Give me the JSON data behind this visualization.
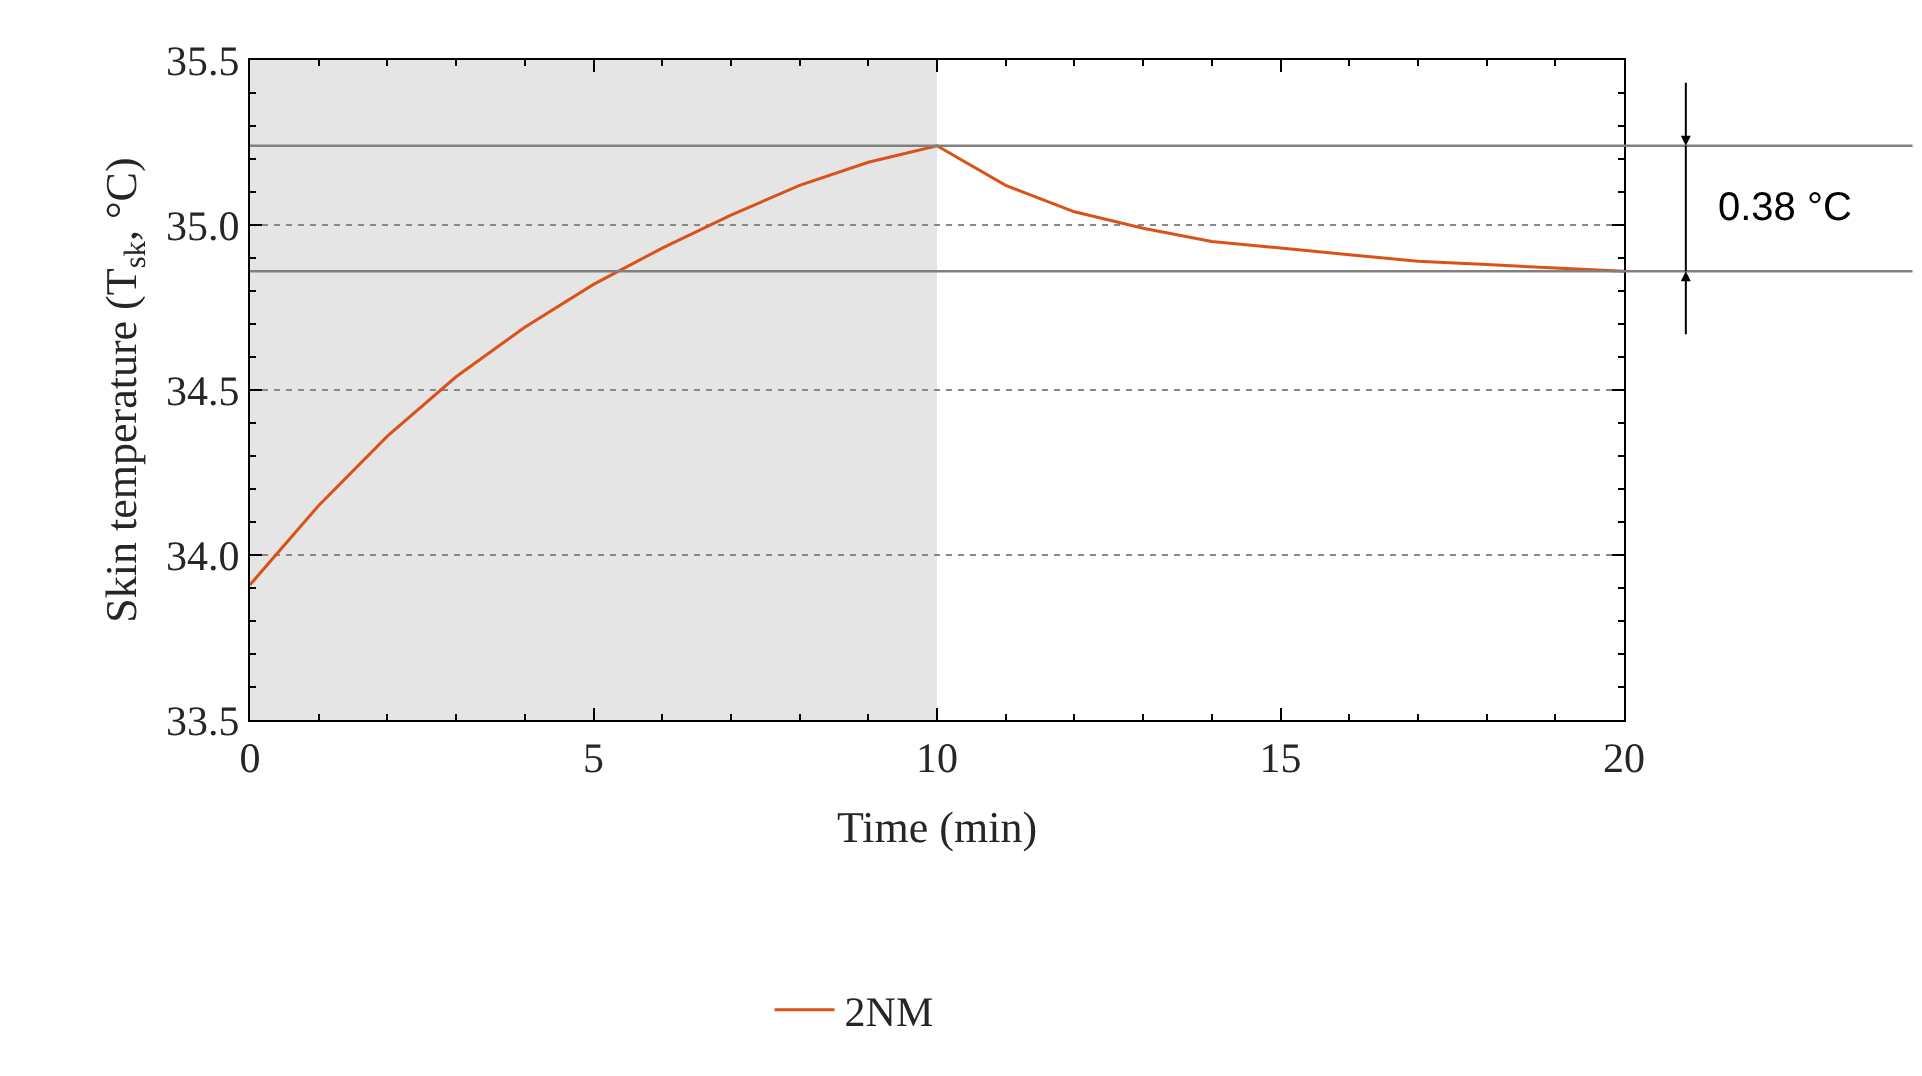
{
  "chart_data": {
    "type": "line",
    "xlabel": "Time (min)",
    "ylabel": "Skin temperature (T$_{sk}$, °C)",
    "x": [
      0,
      1,
      2,
      3,
      4,
      5,
      6,
      7,
      8,
      9,
      10,
      11,
      12,
      13,
      14,
      15,
      16,
      17,
      18,
      19,
      20
    ],
    "series": [
      {
        "name": "2NM",
        "color": "#d95319",
        "values": [
          33.91,
          34.15,
          34.36,
          34.54,
          34.69,
          34.82,
          34.93,
          35.03,
          35.12,
          35.19,
          35.24,
          35.12,
          35.04,
          34.99,
          34.95,
          34.93,
          34.91,
          34.89,
          34.88,
          34.87,
          34.86
        ]
      }
    ],
    "xlim": [
      0,
      20
    ],
    "xticks": [
      0,
      5,
      10,
      15,
      20
    ],
    "ylim": [
      33.5,
      35.5
    ],
    "yticks": [
      33.5,
      {
        "value": 34,
        "label": "34.0"
      },
      34.5,
      {
        "value": 35,
        "label": "35.0"
      },
      35.5
    ],
    "bands": [
      {
        "axis": "x",
        "from": 0,
        "to": 10,
        "color": "#e5e5e5"
      }
    ],
    "ref_lines": [
      {
        "axis": "y",
        "value": 35.24,
        "color": "#808080"
      },
      {
        "axis": "y",
        "value": 34.86,
        "color": "#808080"
      }
    ],
    "annotations": [
      "0.38 °C"
    ],
    "grid": "y",
    "legend": "bottom",
    "marker": "none",
    "line_style": "solid"
  }
}
